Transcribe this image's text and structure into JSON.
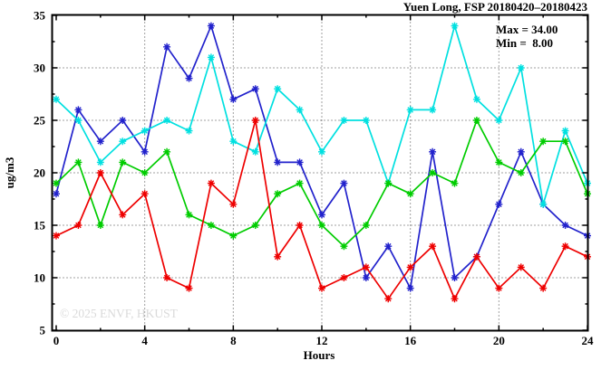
{
  "title": "Yuen Long, FSP 20180420–20180423",
  "legend": {
    "max_label": "Max = 34.00",
    "min_label": "Min =  8.00"
  },
  "watermark": "© 2025 ENVF, HKUST",
  "axes": {
    "x_label": "Hours",
    "y_label": "ug/m3"
  },
  "colors": {
    "blue": "#2222cc",
    "cyan": "#00e0e0",
    "green": "#00cc00",
    "red": "#ee0000",
    "grid": "#444444",
    "border": "#000000",
    "watermark": "#dadada"
  },
  "chart_data": {
    "type": "line",
    "title": "Yuen Long, FSP 20180420–20180423",
    "xlabel": "Hours",
    "ylabel": "ug/m3",
    "xlim": [
      0,
      24
    ],
    "ylim": [
      5,
      35
    ],
    "xticks": [
      0,
      4,
      8,
      12,
      16,
      20,
      24
    ],
    "xticks_minor": [
      2,
      6,
      10,
      14,
      18,
      22
    ],
    "yticks": [
      5,
      10,
      15,
      20,
      25,
      30,
      35
    ],
    "yticks_minor": [
      7.5,
      12.5,
      17.5,
      22.5,
      27.5,
      32.5
    ],
    "grid_x": [
      4,
      8,
      12,
      16,
      20
    ],
    "grid_y": [
      10,
      15,
      20,
      25,
      30
    ],
    "grid": true,
    "legend_position": "top-right-inside",
    "annotations": {
      "max": "Max = 34.00",
      "min": "Min =  8.00"
    },
    "x": [
      0,
      1,
      2,
      3,
      4,
      5,
      6,
      7,
      8,
      9,
      10,
      11,
      12,
      13,
      14,
      15,
      16,
      17,
      18,
      19,
      20,
      21,
      22,
      23,
      24
    ],
    "series": [
      {
        "name": "series-blue",
        "color": "#2222cc",
        "values": [
          18,
          26,
          23,
          25,
          22,
          32,
          29,
          34,
          27,
          28,
          21,
          21,
          16,
          19,
          10,
          13,
          9,
          22,
          10,
          12,
          17,
          22,
          17,
          15,
          14
        ]
      },
      {
        "name": "series-cyan",
        "color": "#00e0e0",
        "values": [
          27,
          25,
          21,
          23,
          24,
          25,
          24,
          31,
          23,
          22,
          28,
          26,
          22,
          25,
          25,
          19,
          26,
          26,
          34,
          27,
          25,
          30,
          17,
          24,
          19
        ]
      },
      {
        "name": "series-green",
        "color": "#00cc00",
        "values": [
          19,
          21,
          15,
          21,
          20,
          22,
          16,
          15,
          14,
          15,
          18,
          19,
          15,
          13,
          15,
          19,
          18,
          20,
          19,
          25,
          21,
          20,
          23,
          23,
          18
        ]
      },
      {
        "name": "series-red",
        "color": "#ee0000",
        "values": [
          14,
          15,
          20,
          16,
          18,
          10,
          9,
          19,
          17,
          25,
          12,
          15,
          9,
          10,
          11,
          8,
          11,
          13,
          8,
          12,
          9,
          11,
          9,
          13,
          12
        ]
      }
    ]
  },
  "stats": {
    "max": 34.0,
    "min": 8.0
  }
}
